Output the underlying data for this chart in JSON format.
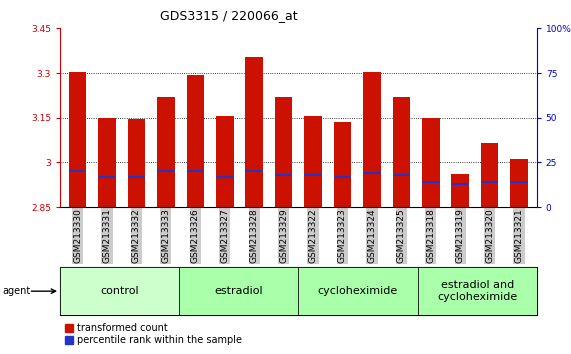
{
  "title": "GDS3315 / 220066_at",
  "samples": [
    "GSM213330",
    "GSM213331",
    "GSM213332",
    "GSM213333",
    "GSM213326",
    "GSM213327",
    "GSM213328",
    "GSM213329",
    "GSM213322",
    "GSM213323",
    "GSM213324",
    "GSM213325",
    "GSM213318",
    "GSM213319",
    "GSM213320",
    "GSM213321"
  ],
  "transformed_counts": [
    3.305,
    3.15,
    3.147,
    3.22,
    3.295,
    3.155,
    3.355,
    3.22,
    3.155,
    3.135,
    3.305,
    3.22,
    3.148,
    2.96,
    3.065,
    3.01
  ],
  "percentile_ranks_pct": [
    20,
    17,
    17,
    20,
    20,
    17,
    20,
    18,
    18,
    17,
    19,
    18,
    14,
    13,
    14,
    14
  ],
  "ymin": 2.85,
  "ymax": 3.45,
  "yticks_left": [
    2.85,
    3.0,
    3.15,
    3.3,
    3.45
  ],
  "ytick_labels_left": [
    "2.85",
    "3",
    "3.15",
    "3.3",
    "3.45"
  ],
  "yticks_right_pct": [
    0,
    25,
    50,
    75,
    100
  ],
  "ytick_labels_right": [
    "0",
    "25",
    "50",
    "75",
    "100%"
  ],
  "bar_color": "#cc1100",
  "blue_color": "#2233cc",
  "bar_width": 0.6,
  "groups": [
    {
      "label": "control",
      "start": 0,
      "end": 4,
      "color": "#ccffcc"
    },
    {
      "label": "estradiol",
      "start": 4,
      "end": 8,
      "color": "#aaffaa"
    },
    {
      "label": "cycloheximide",
      "start": 8,
      "end": 12,
      "color": "#aaffaa"
    },
    {
      "label": "estradiol and\ncycloheximide",
      "start": 12,
      "end": 16,
      "color": "#aaffaa"
    }
  ],
  "legend_transformed": "transformed count",
  "legend_percentile": "percentile rank within the sample",
  "agent_label": "agent",
  "left_tick_color": "#cc0000",
  "right_tick_color": "#0000cc",
  "blue_bar_height": 0.007,
  "grid_lines": [
    3.0,
    3.15,
    3.3
  ],
  "title_fontsize": 9,
  "tick_fontsize": 6.5,
  "group_fontsize": 8
}
